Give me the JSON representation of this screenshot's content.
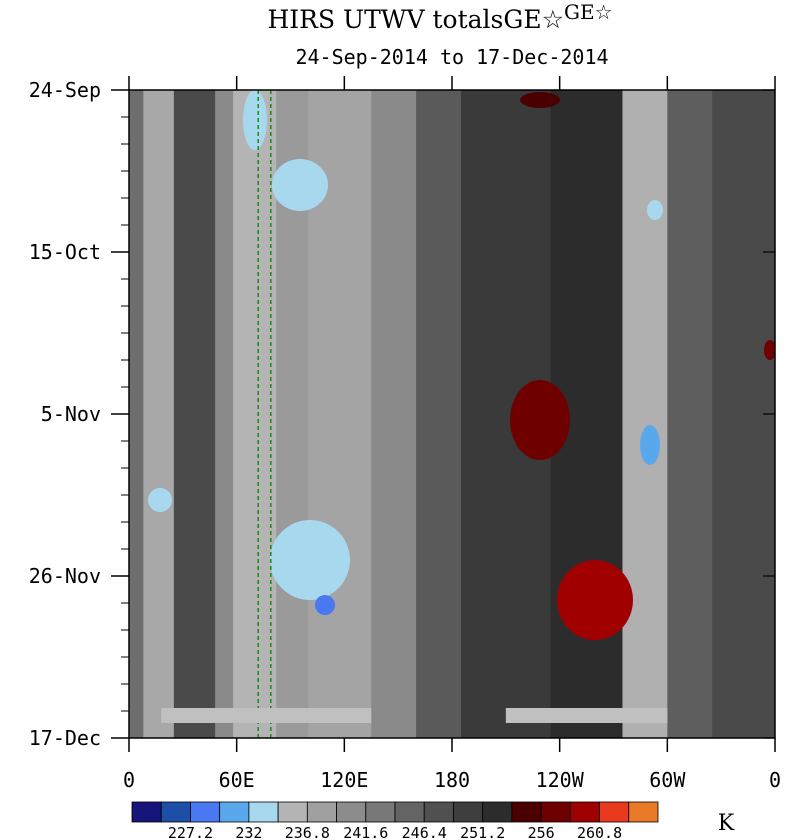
{
  "chart_data": {
    "type": "heatmap",
    "title": "HIRS UTWV totalsGE☆",
    "title_superscript": "GE☆",
    "subtitle": "24-Sep-2014 to 17-Dec-2014",
    "x_ticks": [
      "0",
      "60E",
      "120E",
      "180",
      "120W",
      "60W",
      "0"
    ],
    "x_tick_values": [
      0,
      60,
      120,
      180,
      240,
      300,
      360
    ],
    "y_ticks": [
      "24-Sep",
      "15-Oct",
      "5-Nov",
      "26-Nov",
      "17-Dec"
    ],
    "xlim": [
      0,
      360
    ],
    "colorbar": {
      "unit": "K",
      "labels": [
        "227.2",
        "232",
        "236.8",
        "241.6",
        "246.4",
        "251.2",
        "256",
        "260.8"
      ],
      "colors": [
        "#15157a",
        "#1e4fa6",
        "#4a78f0",
        "#5aa8ec",
        "#a8d8ee",
        "#b4b4b4",
        "#a0a0a0",
        "#8c8c8c",
        "#787878",
        "#646464",
        "#505050",
        "#3e3e3e",
        "#2c2c2c",
        "#4a0000",
        "#6e0000",
        "#a00000",
        "#e83a1e",
        "#e87a28"
      ]
    },
    "reference_lines_lon": [
      72,
      79
    ],
    "missing_bars": [
      {
        "lon_start": 18,
        "lon_end": 135
      },
      {
        "lon_start": 210,
        "lon_end": 300
      }
    ]
  }
}
